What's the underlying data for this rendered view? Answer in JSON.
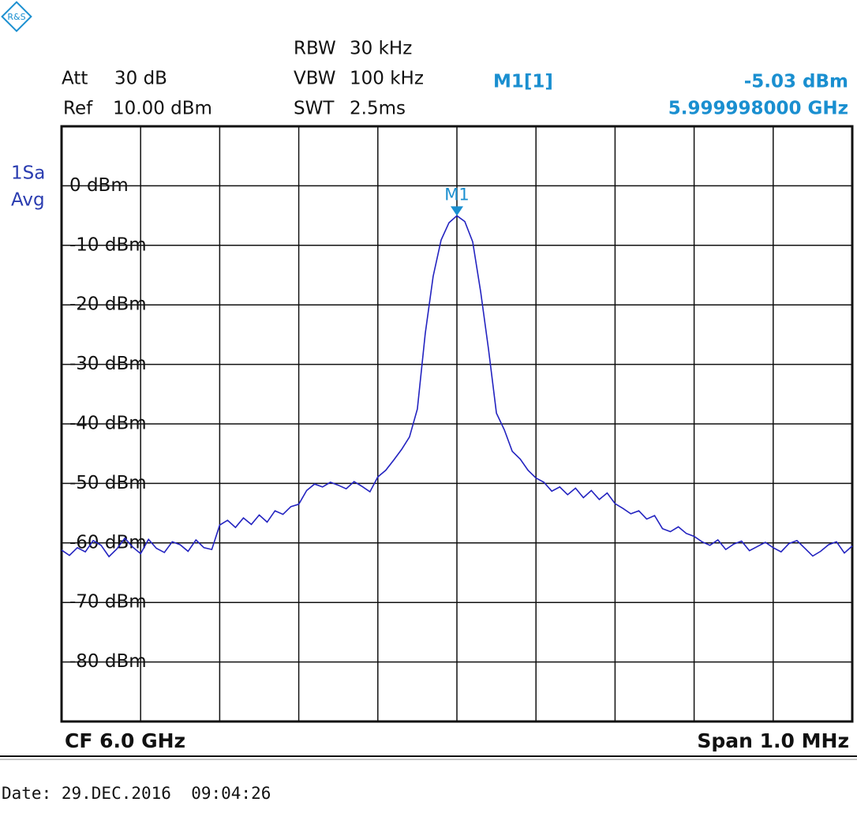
{
  "chart_data": {
    "type": "line",
    "settings": [
      {
        "label": "Att",
        "value": "30 dB"
      },
      {
        "label": "Ref",
        "value": "10.00 dBm"
      }
    ],
    "bandwidth": [
      {
        "label": "RBW",
        "value": "30 kHz"
      },
      {
        "label": "VBW",
        "value": "100 kHz"
      },
      {
        "label": "SWT",
        "value": "2.5ms"
      }
    ],
    "trace_mode": [
      "1Sa",
      "Avg"
    ],
    "marker": {
      "name": "M1",
      "legend": "M1[1]",
      "value": -5.03,
      "label": "-5.03 dBm",
      "frequency": "5.999998000 GHz"
    },
    "center": "CF 6.0 GHz",
    "span": "Span 1.0 MHz",
    "date": "Date: 29.DEC.2016  09:04:26",
    "color": "#2323c0",
    "marker_color": "#1a8fd0",
    "ylim": [
      -90,
      10
    ],
    "yticks": [
      {
        "value": 0,
        "label": "0 dBm"
      },
      {
        "value": -10,
        "label": "-10 dBm"
      },
      {
        "value": -20,
        "label": "-20 dBm"
      },
      {
        "value": -30,
        "label": "-30 dBm"
      },
      {
        "value": -40,
        "label": "-40 dBm"
      },
      {
        "value": -50,
        "label": "-50 dBm"
      },
      {
        "value": -60,
        "label": "-60 dBm"
      },
      {
        "value": -70,
        "label": "-70 dBm"
      },
      {
        "value": -80,
        "label": "-80 dBm"
      }
    ],
    "grid": true,
    "values": [
      -61.2,
      -62.1,
      -60.8,
      -61.5,
      -59.6,
      -60.4,
      -62.3,
      -61.0,
      -59.2,
      -60.7,
      -61.8,
      -59.4,
      -60.9,
      -61.6,
      -59.8,
      -60.3,
      -61.4,
      -59.5,
      -60.8,
      -61.1,
      -57.0,
      -56.2,
      -57.4,
      -55.8,
      -56.9,
      -55.3,
      -56.5,
      -54.6,
      -55.2,
      -53.9,
      -53.5,
      -51.2,
      -50.1,
      -50.6,
      -49.8,
      -50.3,
      -50.9,
      -49.7,
      -50.5,
      -51.4,
      -48.9,
      -47.8,
      -46.1,
      -44.3,
      -42.2,
      -37.5,
      -24.8,
      -15.2,
      -9.1,
      -6.2,
      -5.03,
      -6.0,
      -9.4,
      -17.8,
      -27.5,
      -38.2,
      -41.0,
      -44.6,
      -45.9,
      -47.8,
      -49.1,
      -49.8,
      -51.3,
      -50.6,
      -51.9,
      -50.8,
      -52.4,
      -51.2,
      -52.7,
      -51.6,
      -53.4,
      -54.2,
      -55.1,
      -54.6,
      -56.0,
      -55.4,
      -57.6,
      -58.1,
      -57.3,
      -58.4,
      -58.9,
      -59.8,
      -60.4,
      -59.5,
      -61.1,
      -60.2,
      -59.7,
      -61.3,
      -60.6,
      -59.9,
      -60.8,
      -61.5,
      -60.1,
      -59.6,
      -60.9,
      -62.2,
      -61.4,
      -60.3,
      -59.8,
      -61.7,
      -60.5
    ]
  }
}
